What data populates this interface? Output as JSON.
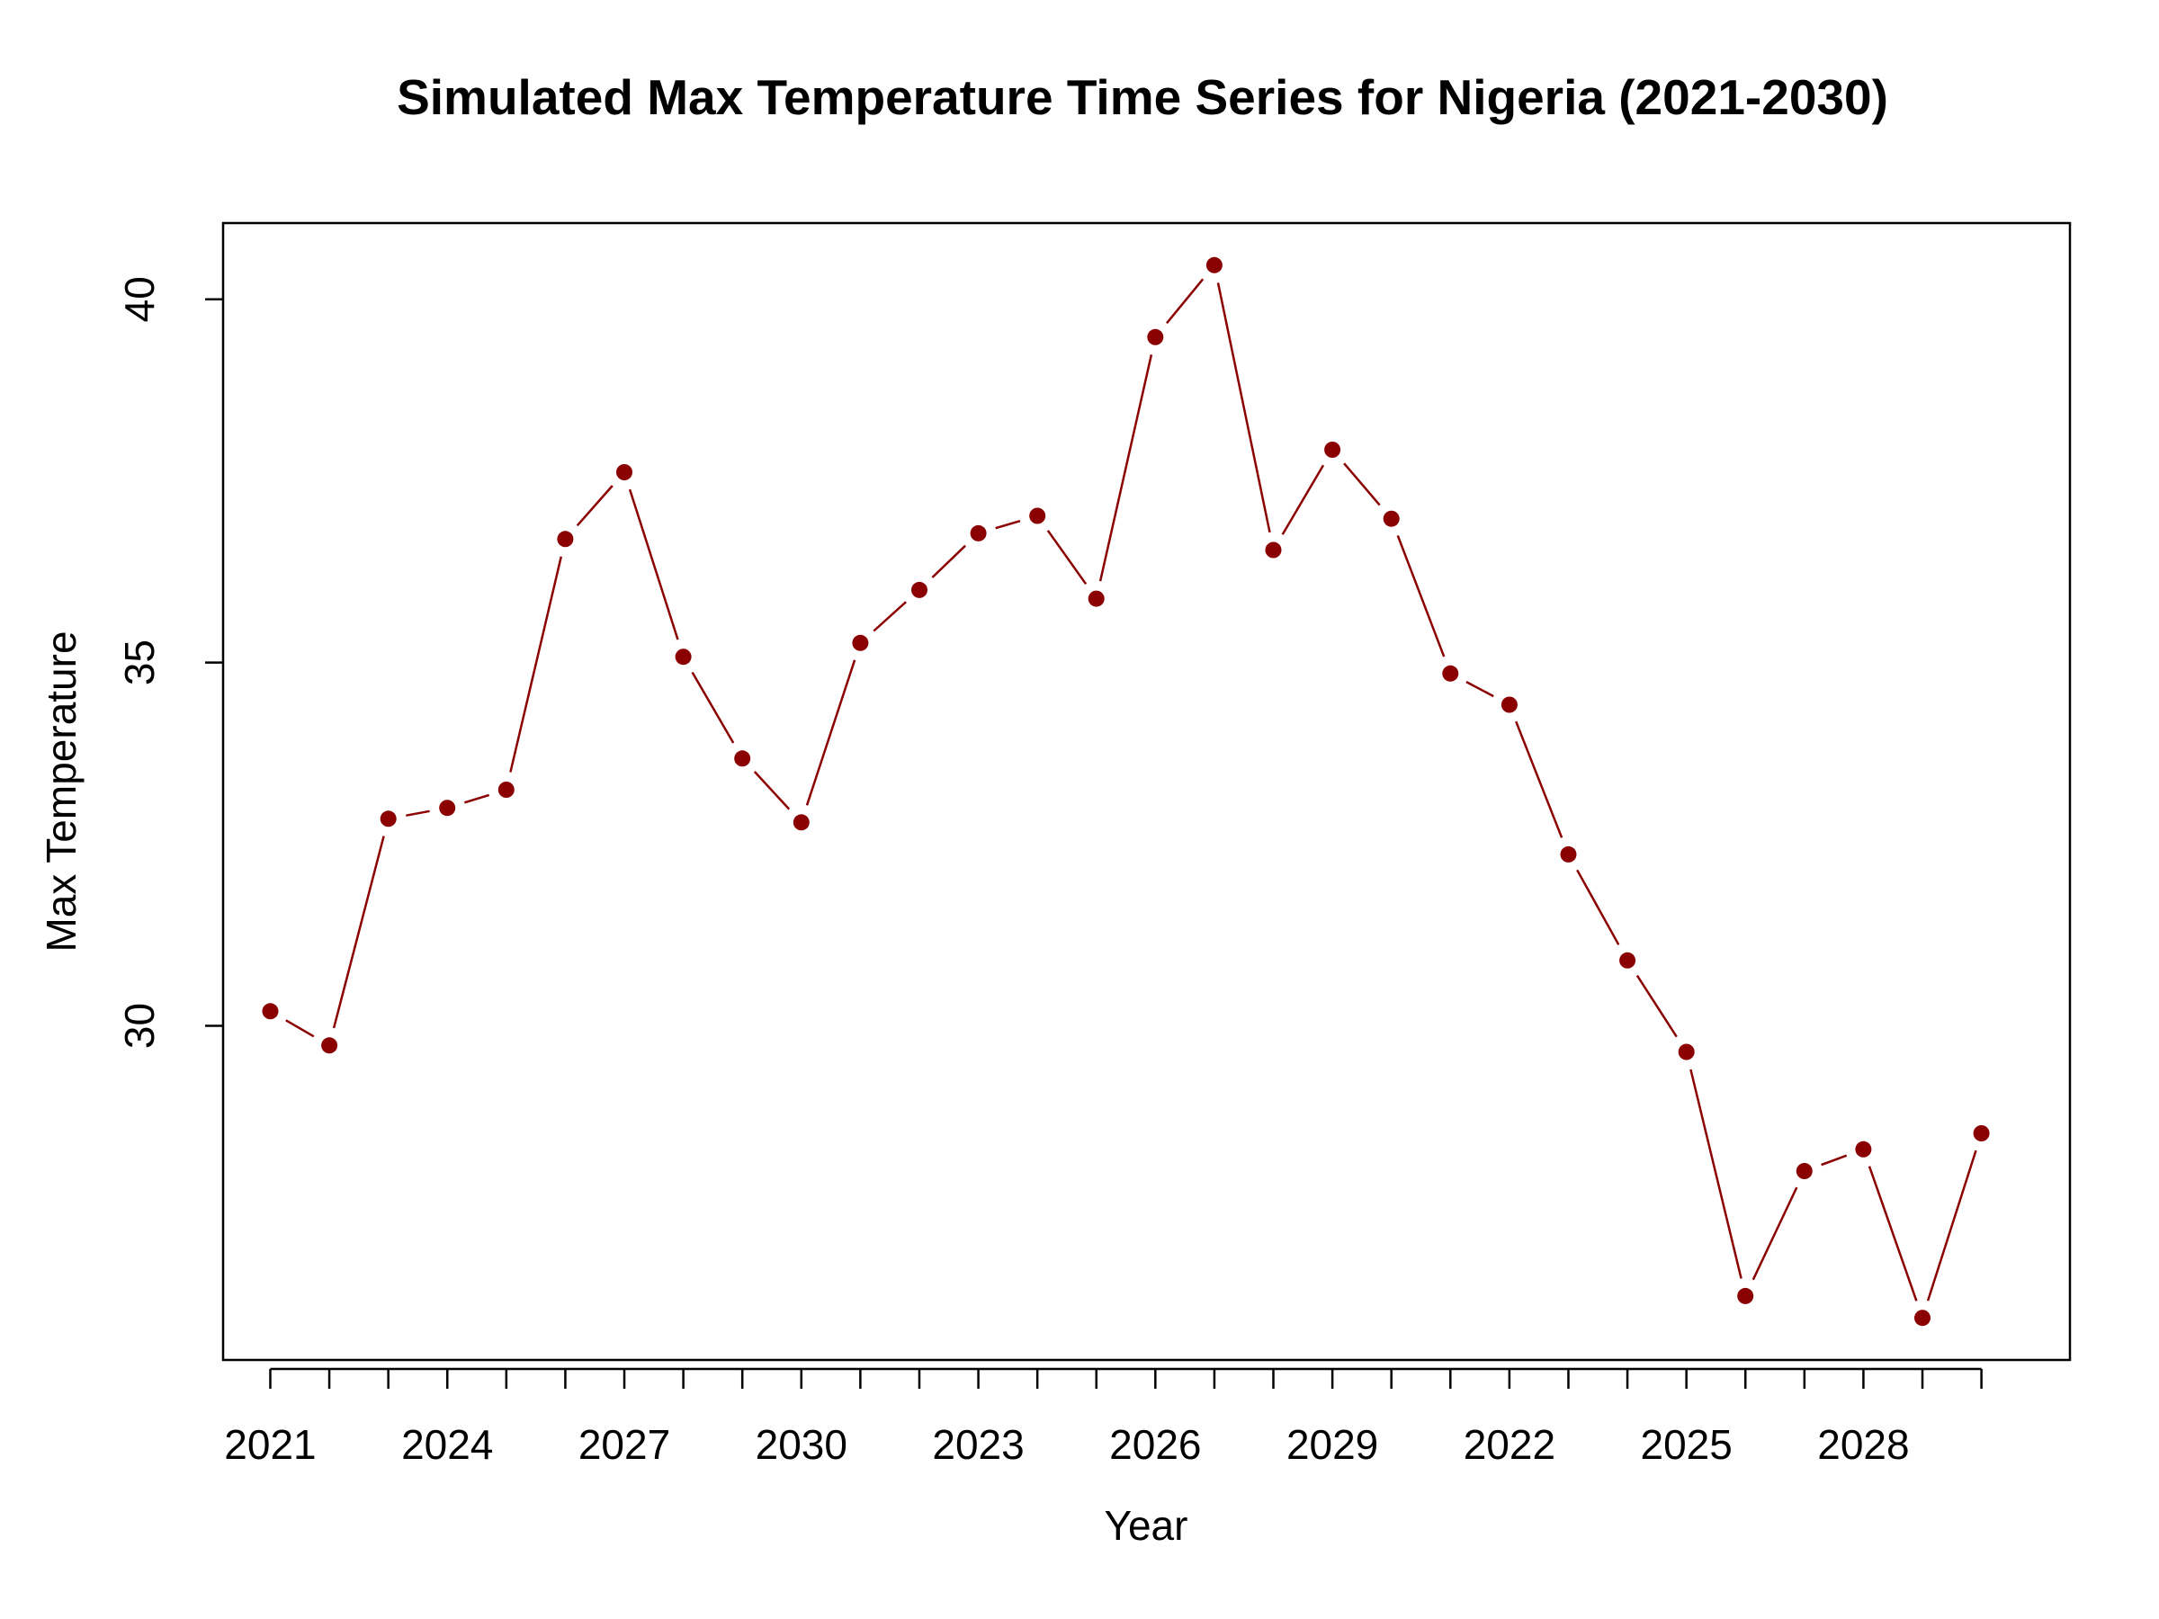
{
  "chart_data": {
    "type": "line",
    "title": "Simulated Max Temperature Time Series for Nigeria (2021-2030)",
    "xlabel": "Year",
    "ylabel": "Max Temperature",
    "x_tick_labels": [
      {
        "index": 1,
        "label": "2021"
      },
      {
        "index": 4,
        "label": "2024"
      },
      {
        "index": 7,
        "label": "2027"
      },
      {
        "index": 10,
        "label": "2030"
      },
      {
        "index": 13,
        "label": "2023"
      },
      {
        "index": 16,
        "label": "2026"
      },
      {
        "index": 19,
        "label": "2029"
      },
      {
        "index": 22,
        "label": "2022"
      },
      {
        "index": 25,
        "label": "2025"
      },
      {
        "index": 28,
        "label": "2028"
      }
    ],
    "x_ticks": [
      1,
      2,
      3,
      4,
      5,
      6,
      7,
      8,
      9,
      10,
      11,
      12,
      13,
      14,
      15,
      16,
      17,
      18,
      19,
      20,
      21,
      22,
      23,
      24,
      25,
      26,
      27,
      28,
      29,
      30
    ],
    "y_ticks": [
      30,
      35,
      40
    ],
    "xlim": [
      0.2,
      31.5
    ],
    "ylim": [
      25.4,
      41.05
    ],
    "x": [
      1,
      2,
      3,
      4,
      5,
      6,
      7,
      8,
      9,
      10,
      11,
      12,
      13,
      14,
      15,
      16,
      17,
      18,
      19,
      20,
      21,
      22,
      23,
      24,
      25,
      26,
      27,
      28,
      29,
      30
    ],
    "values": [
      30.2,
      29.73,
      32.85,
      33.0,
      33.25,
      36.7,
      37.62,
      35.08,
      33.68,
      32.8,
      35.27,
      36.0,
      36.78,
      37.02,
      35.88,
      39.48,
      40.47,
      36.55,
      37.93,
      36.98,
      34.85,
      34.42,
      32.36,
      30.9,
      29.64,
      26.28,
      28.0,
      28.3,
      25.98,
      28.52
    ],
    "line_type": "both",
    "colors": {
      "series": "#8B0000",
      "axis": "#000000",
      "background": "#ffffff"
    },
    "grid": false,
    "legend": "none"
  }
}
